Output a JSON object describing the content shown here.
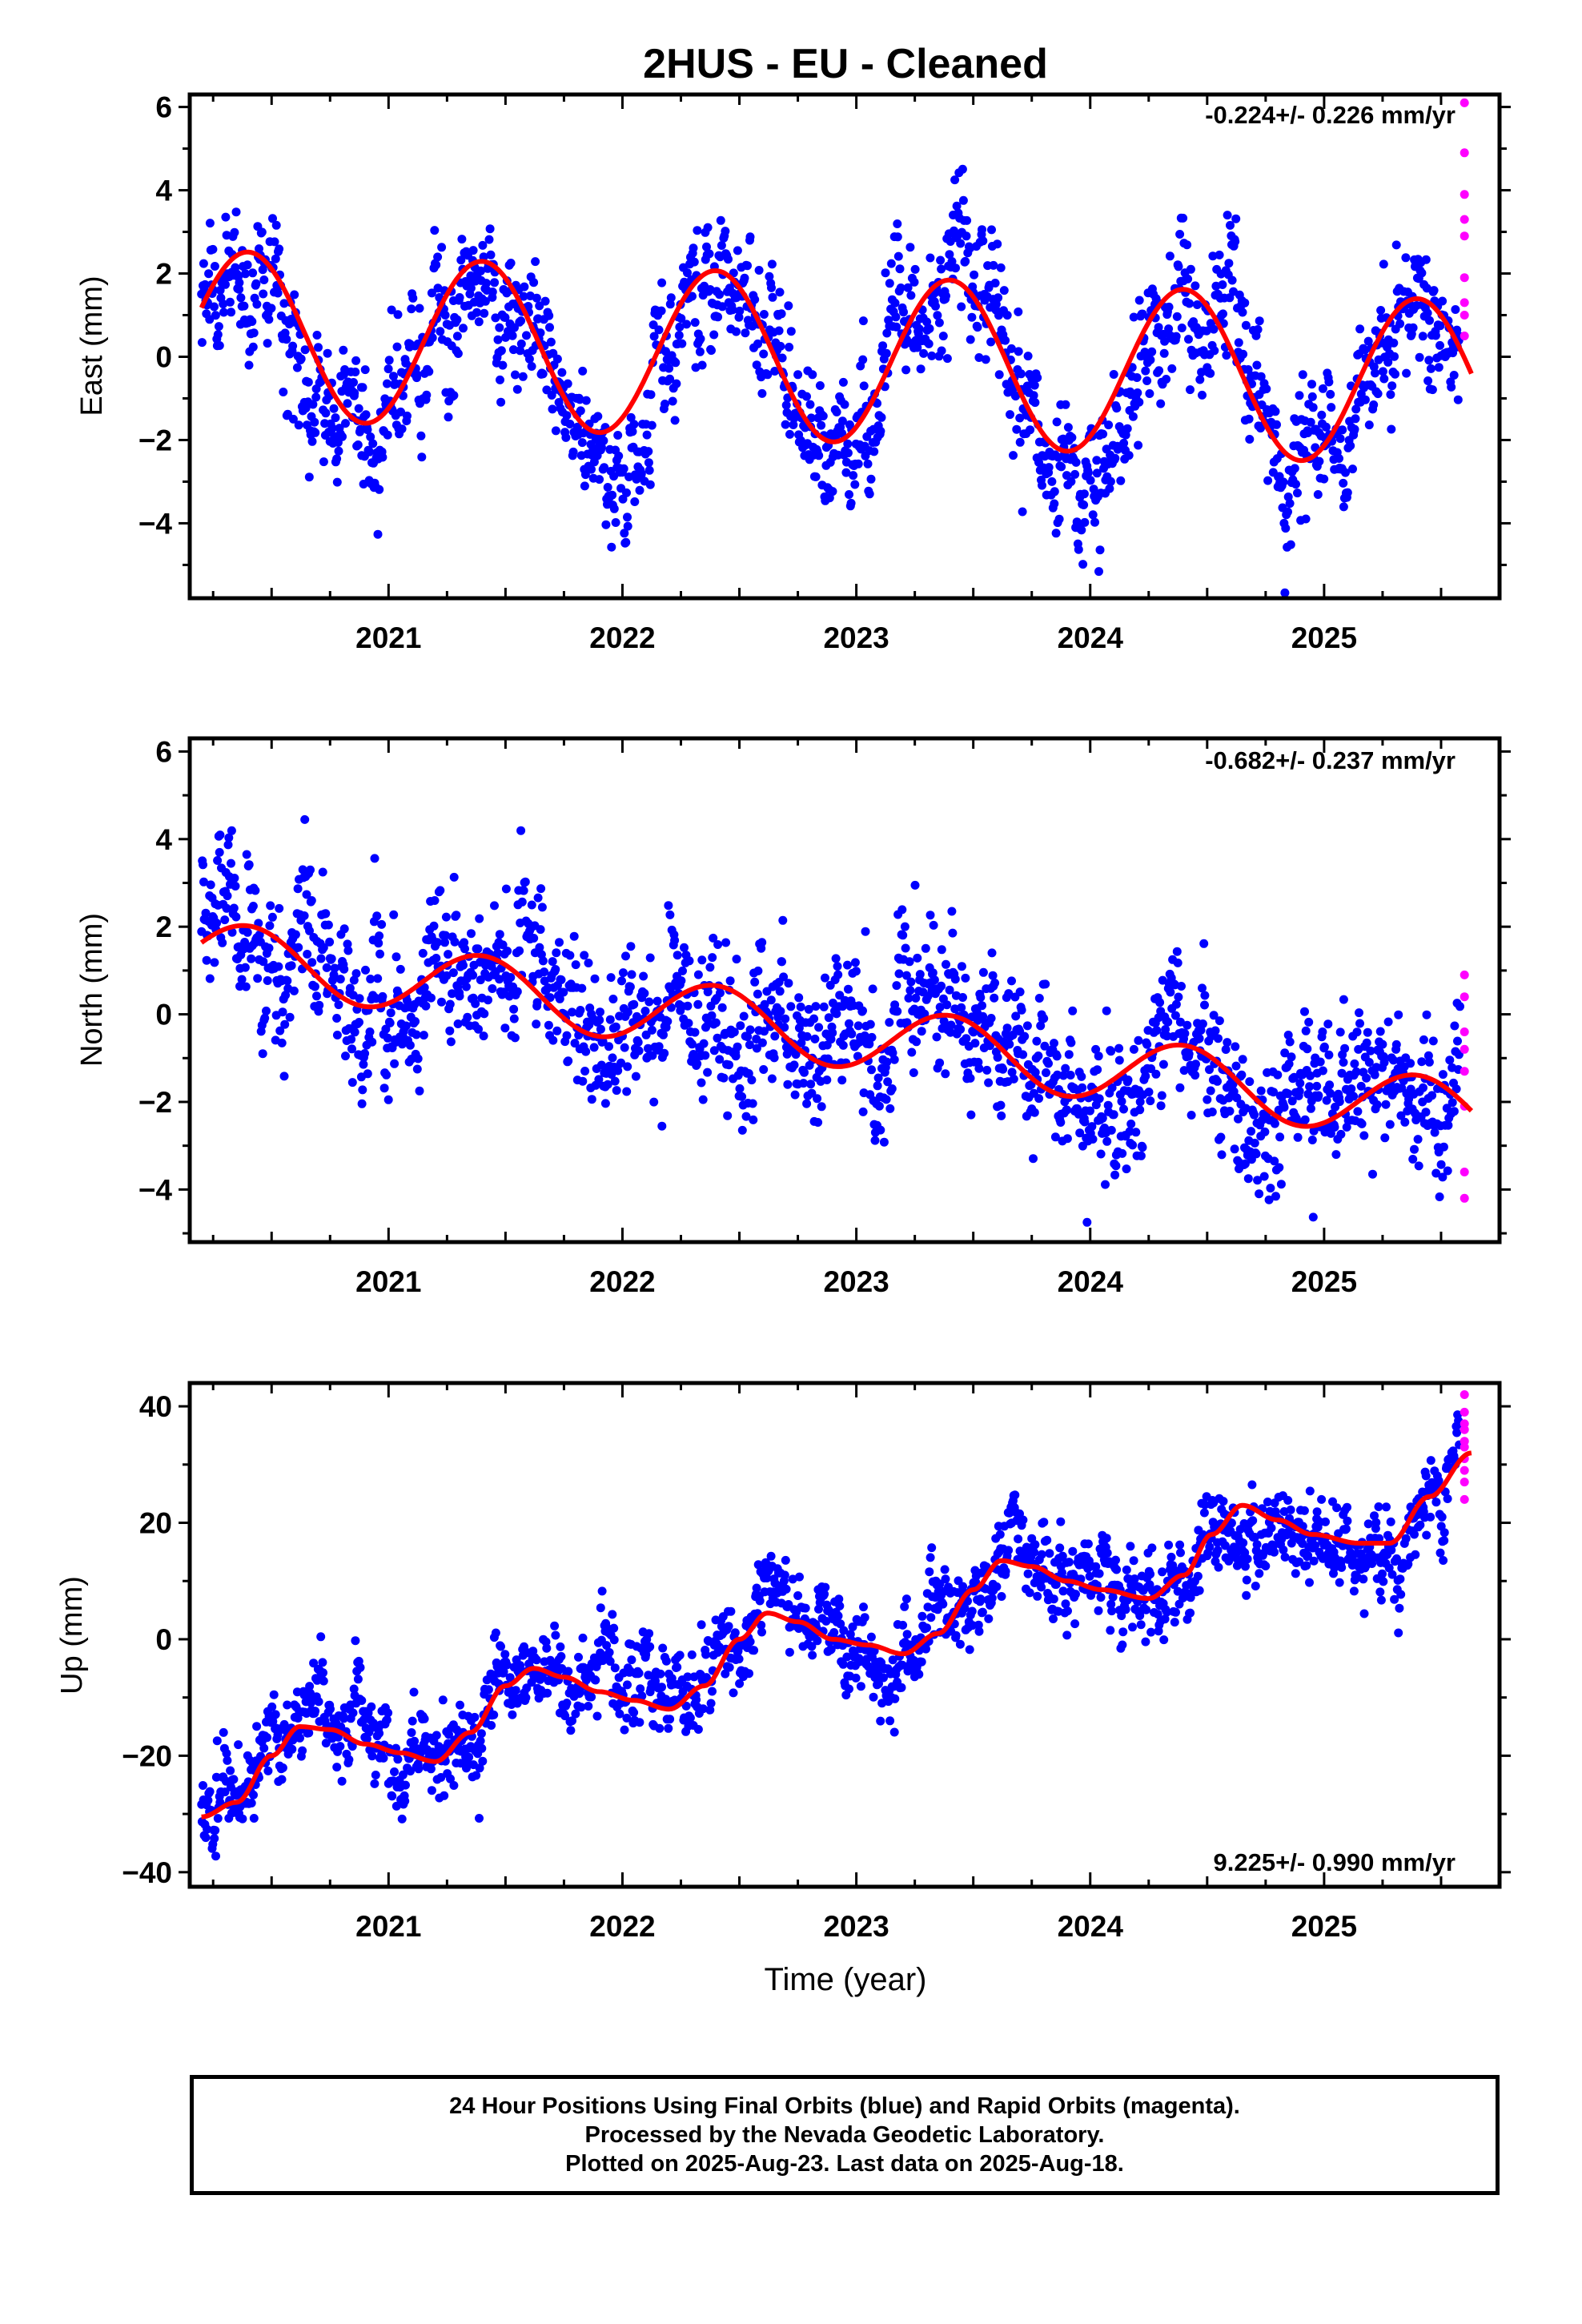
{
  "figure": {
    "title": "2HUS  - EU - Cleaned",
    "xlabel": "Time (year)"
  },
  "footer": {
    "line1": "24 Hour Positions Using Final Orbits (blue) and Rapid Orbits (magenta).",
    "line2": "Processed by the Nevada Geodetic Laboratory.",
    "line3": "Plotted on 2025-Aug-23. Last data on 2025-Aug-18."
  },
  "colors": {
    "final_orbits": "#0000ff",
    "rapid_orbits": "#ff00ff",
    "model_fit": "#ff0000"
  },
  "chart_data": [
    {
      "type": "scatter",
      "ylabel": "East (mm)",
      "rate_label": "-0.224+/- 0.226 mm/yr",
      "rate_position": "top-right",
      "xlim": [
        2020.15,
        2025.75
      ],
      "ylim": [
        -5.8,
        6.3
      ],
      "x_ticks": [
        2021,
        2022,
        2023,
        2024,
        2025
      ],
      "y_ticks": [
        -4,
        -2,
        0,
        2,
        4,
        6
      ],
      "fit": {
        "intercept_at_2022_7": 0.0,
        "trend_mm_per_yr": -0.224,
        "annual_amplitude_mm": 2.0,
        "annual_peak_fraction": 0.4,
        "endpoints": {
          "2020.2": 0.3,
          "2025.63": -0.5
        }
      },
      "points": {
        "final_x_range": [
          2020.2,
          2025.58
        ],
        "scatter_sd_mm": 0.9,
        "rapid_x": 2025.6,
        "rapid_y": [
          6.1,
          4.9,
          3.9,
          3.3,
          2.9,
          1.9,
          1.3,
          1.0,
          0.5
        ]
      }
    },
    {
      "type": "scatter",
      "ylabel": "North (mm)",
      "rate_label": "-0.682+/- 0.237 mm/yr",
      "rate_position": "top-right",
      "xlim": [
        2020.15,
        2025.75
      ],
      "ylim": [
        -5.2,
        6.3
      ],
      "x_ticks": [
        2021,
        2022,
        2023,
        2024,
        2025
      ],
      "y_ticks": [
        -4,
        -2,
        0,
        2,
        4,
        6
      ],
      "fit": {
        "intercept_at_2022_7": -0.3,
        "trend_mm_per_yr": -0.682,
        "annual_amplitude_mm": 0.75,
        "annual_peak_fraction": 0.4,
        "endpoints": {
          "2020.2": 1.7,
          "2025.63": -2.8
        }
      },
      "points": {
        "final_x_range": [
          2020.2,
          2025.58
        ],
        "scatter_sd_mm": 0.95,
        "rapid_x": 2025.6,
        "rapid_y": [
          0.9,
          0.4,
          -0.4,
          -0.8,
          -1.3,
          -2.1,
          -3.6,
          -4.2
        ]
      }
    },
    {
      "type": "scatter",
      "ylabel": "Up (mm)",
      "rate_label": "9.225+/- 0.990 mm/yr",
      "rate_position": "bottom-right",
      "xlim": [
        2020.15,
        2025.75
      ],
      "ylim": [
        -42.5,
        44
      ],
      "x_ticks": [
        2021,
        2022,
        2023,
        2024,
        2025
      ],
      "y_ticks": [
        -40,
        -20,
        0,
        20,
        40
      ],
      "fit": {
        "trend_mm_per_yr": 9.225,
        "curve": [
          [
            2020.2,
            -30.5
          ],
          [
            2020.35,
            -28
          ],
          [
            2020.5,
            -20
          ],
          [
            2020.62,
            -15
          ],
          [
            2020.75,
            -15.5
          ],
          [
            2020.9,
            -18
          ],
          [
            2021.05,
            -19.5
          ],
          [
            2021.2,
            -21
          ],
          [
            2021.35,
            -16
          ],
          [
            2021.5,
            -8
          ],
          [
            2021.62,
            -5
          ],
          [
            2021.75,
            -6.5
          ],
          [
            2021.9,
            -9
          ],
          [
            2022.05,
            -10.5
          ],
          [
            2022.2,
            -12
          ],
          [
            2022.35,
            -8
          ],
          [
            2022.5,
            0
          ],
          [
            2022.62,
            4.5
          ],
          [
            2022.75,
            3
          ],
          [
            2022.9,
            0
          ],
          [
            2023.05,
            -1
          ],
          [
            2023.2,
            -2.5
          ],
          [
            2023.35,
            1
          ],
          [
            2023.5,
            8.5
          ],
          [
            2023.62,
            13.5
          ],
          [
            2023.75,
            12.5
          ],
          [
            2023.9,
            10
          ],
          [
            2024.05,
            8.5
          ],
          [
            2024.25,
            7
          ],
          [
            2024.4,
            11
          ],
          [
            2024.52,
            18
          ],
          [
            2024.65,
            23
          ],
          [
            2024.8,
            20.5
          ],
          [
            2024.95,
            18
          ],
          [
            2025.15,
            16.5
          ],
          [
            2025.28,
            16.5
          ],
          [
            2025.45,
            24.5
          ],
          [
            2025.63,
            32
          ]
        ]
      },
      "points": {
        "final_x_range": [
          2020.2,
          2025.58
        ],
        "scatter_sd_mm": 4.2,
        "rapid_x": 2025.6,
        "rapid_y": [
          42,
          39,
          37,
          36,
          34,
          33,
          31,
          29,
          27,
          24
        ]
      }
    }
  ]
}
